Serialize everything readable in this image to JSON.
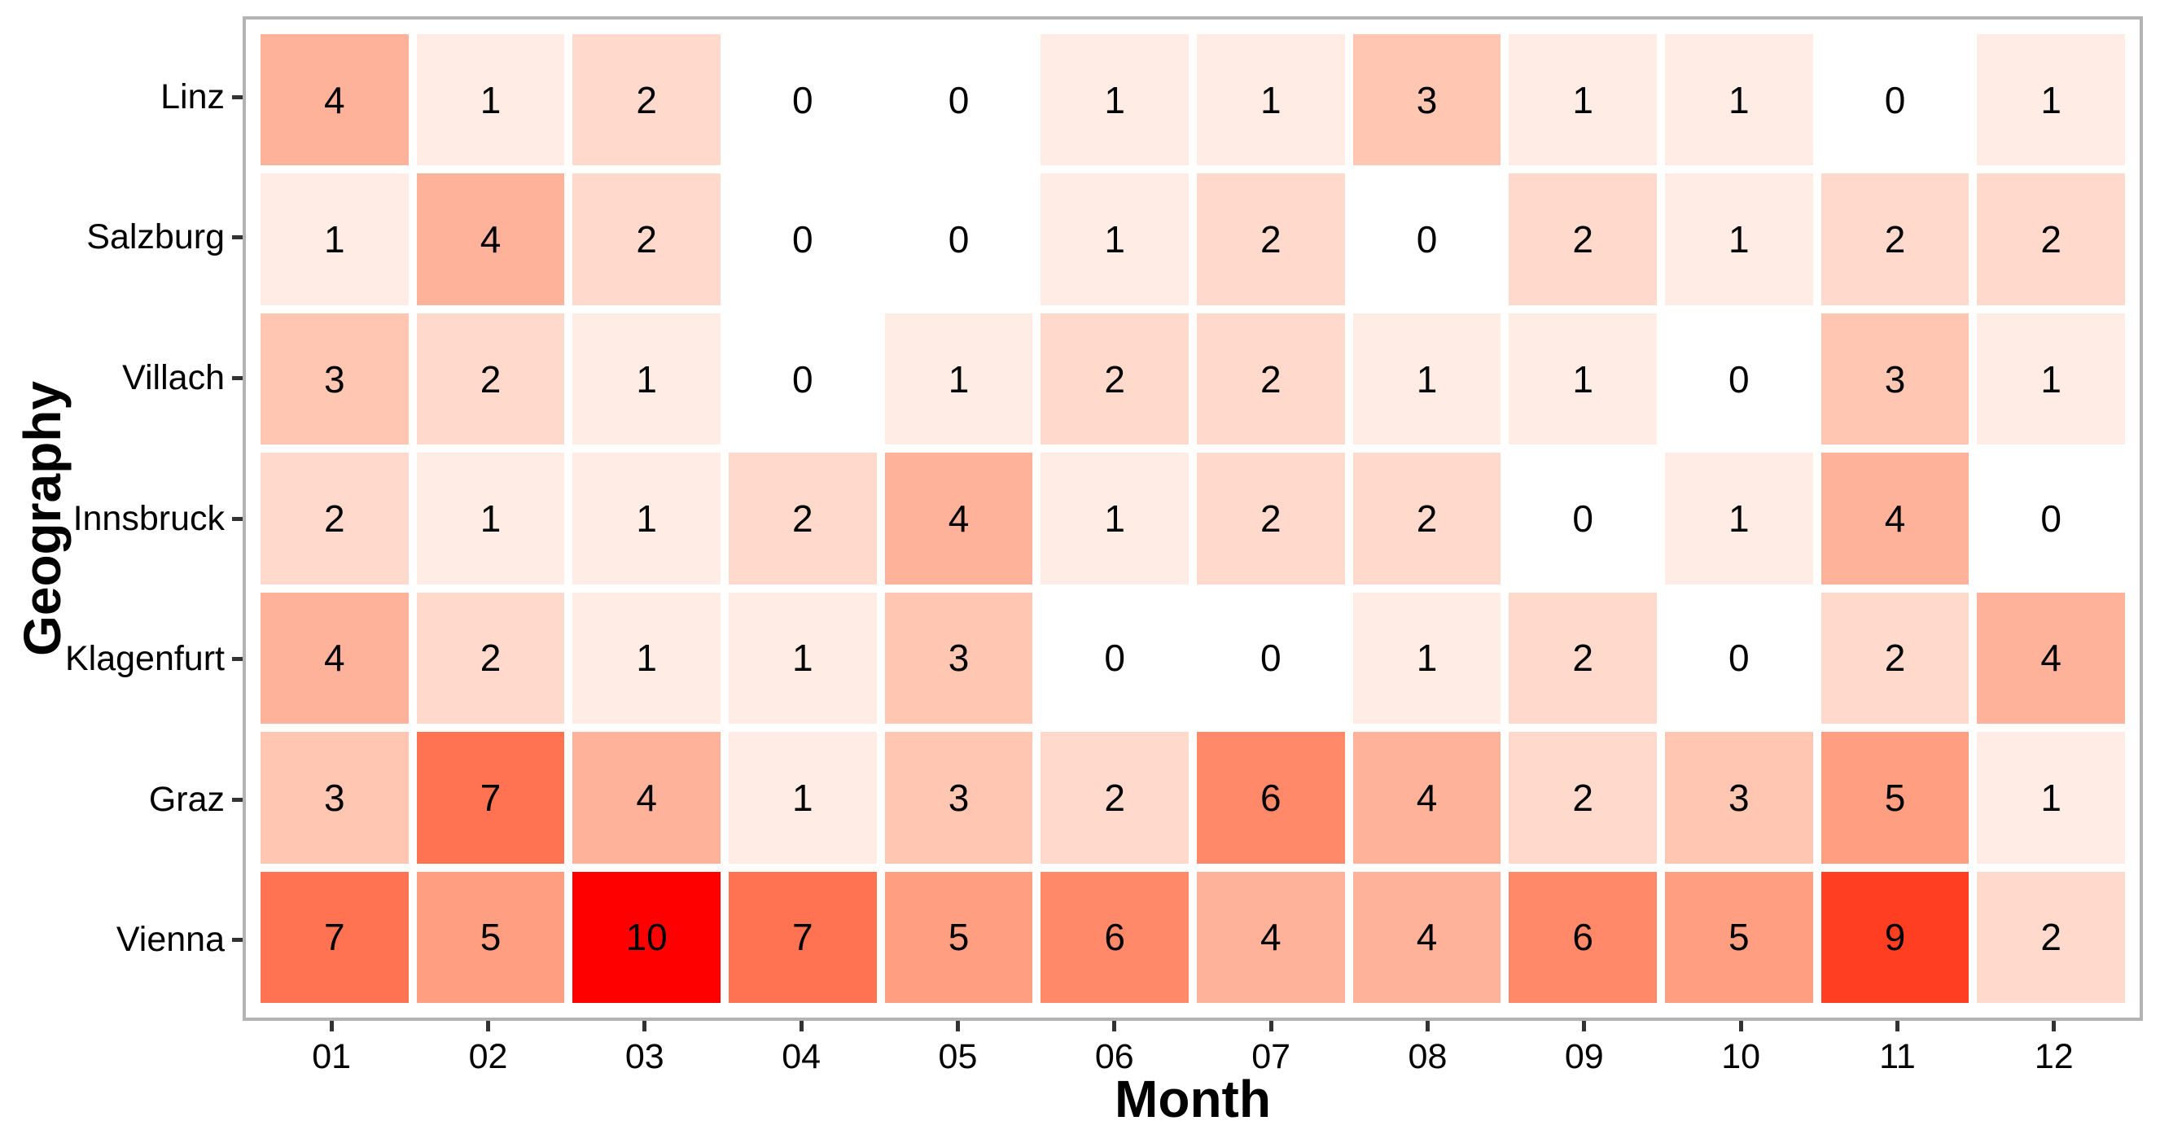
{
  "chart_data": {
    "type": "heatmap",
    "title": "",
    "xlabel": "Month",
    "ylabel": "Geography",
    "x_categories": [
      "01",
      "02",
      "03",
      "04",
      "05",
      "06",
      "07",
      "08",
      "09",
      "10",
      "11",
      "12"
    ],
    "y_categories": [
      "Linz",
      "Salzburg",
      "Villach",
      "Innsbruck",
      "Klagenfurt",
      "Graz",
      "Vienna"
    ],
    "values": [
      [
        4,
        1,
        2,
        0,
        0,
        1,
        1,
        3,
        1,
        1,
        0,
        1
      ],
      [
        1,
        4,
        2,
        0,
        0,
        1,
        2,
        0,
        2,
        1,
        2,
        2
      ],
      [
        3,
        2,
        1,
        0,
        1,
        2,
        2,
        1,
        1,
        0,
        3,
        1
      ],
      [
        2,
        1,
        1,
        2,
        4,
        1,
        2,
        2,
        0,
        1,
        4,
        0
      ],
      [
        4,
        2,
        1,
        1,
        3,
        0,
        0,
        1,
        2,
        0,
        2,
        4
      ],
      [
        3,
        7,
        4,
        1,
        3,
        2,
        6,
        4,
        2,
        3,
        5,
        1
      ],
      [
        7,
        5,
        10,
        7,
        5,
        6,
        4,
        4,
        6,
        5,
        9,
        2
      ]
    ],
    "color_scale": {
      "min": 0,
      "max": 10,
      "low": "#FFFFFF",
      "high": "#FF0000"
    },
    "palette": {
      "0": "#FFFFFF",
      "1": "#FFECE4",
      "2": "#FFD9CB",
      "3": "#FFC6B2",
      "4": "#FFB29A",
      "5": "#FF9E81",
      "6": "#FF8969",
      "7": "#FF7352",
      "8": "#FF5B3A",
      "9": "#FF3E22",
      "10": "#FF0000"
    },
    "legend": "none",
    "grid": false
  },
  "colors": {
    "panel_border": "#B3B3B3",
    "tick_mark": "#333333",
    "label_text": "#000000",
    "background": "#FFFFFF"
  }
}
